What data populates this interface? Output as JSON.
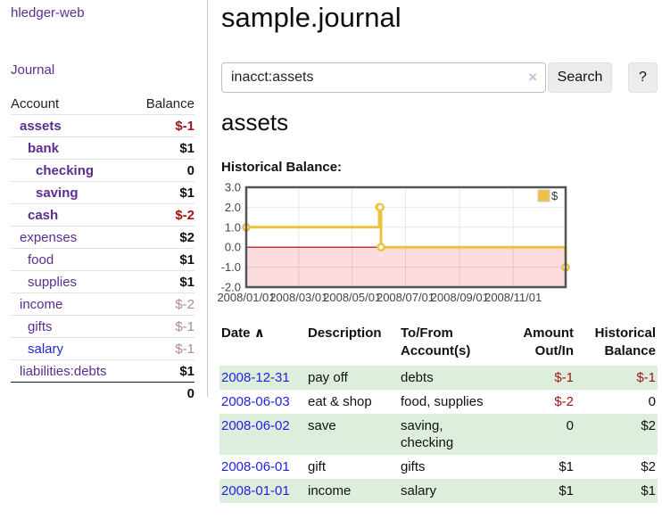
{
  "header": {
    "title": "sample.journal"
  },
  "sidebar": {
    "brand": "hledger-web",
    "journal_link": "Journal",
    "accounts_header": {
      "account": "Account",
      "balance": "Balance"
    },
    "accounts": [
      {
        "name": "assets",
        "indent": 1,
        "bold": true,
        "balance": "$-1",
        "balance_style": "neg-strong"
      },
      {
        "name": "bank",
        "indent": 2,
        "bold": true,
        "balance": "$1",
        "balance_style": "pos"
      },
      {
        "name": "checking",
        "indent": 3,
        "bold": true,
        "balance": "0",
        "balance_style": "pos"
      },
      {
        "name": "saving",
        "indent": 3,
        "bold": true,
        "balance": "$1",
        "balance_style": "pos"
      },
      {
        "name": "cash",
        "indent": 2,
        "bold": true,
        "balance": "$-2",
        "balance_style": "neg-strong"
      },
      {
        "name": "expenses",
        "indent": 1,
        "bold": false,
        "balance": "$2",
        "balance_style": "pos"
      },
      {
        "name": "food",
        "indent": 2,
        "bold": false,
        "balance": "$1",
        "balance_style": "pos"
      },
      {
        "name": "supplies",
        "indent": 2,
        "bold": false,
        "balance": "$1",
        "balance_style": "pos"
      },
      {
        "name": "income",
        "indent": 1,
        "bold": false,
        "balance": "$-2",
        "balance_style": "neg-soft"
      },
      {
        "name": "gifts",
        "indent": 2,
        "bold": false,
        "balance": "$-1",
        "balance_style": "neg-soft"
      },
      {
        "name": "salary",
        "indent": 2,
        "bold": false,
        "balance": "$-1",
        "balance_style": "neg-soft",
        "link_color": "blue"
      },
      {
        "name": "liabilities:debts",
        "indent": 1,
        "bold": false,
        "balance": "$1",
        "balance_style": "pos"
      }
    ],
    "total": "0"
  },
  "search": {
    "value": "inacct:assets",
    "clear_icon": "×",
    "button_label": "Search",
    "help_label": "?"
  },
  "account_page": {
    "heading": "assets",
    "chart_label": "Historical Balance:"
  },
  "chart_data": {
    "type": "line",
    "title": "Historical Balance:",
    "step": true,
    "series": [
      {
        "name": "$",
        "color": "#edc240",
        "points": [
          [
            "2008-01-01",
            1
          ],
          [
            "2008-06-01",
            2
          ],
          [
            "2008-06-02",
            2
          ],
          [
            "2008-06-03",
            0
          ],
          [
            "2008-12-31",
            -1
          ]
        ]
      }
    ],
    "x_range": [
      "2008-01-01",
      "2008-12-31"
    ],
    "y_range": [
      -2,
      3
    ],
    "y_ticks": [
      3.0,
      2.0,
      1.0,
      0.0,
      -1.0,
      -2.0
    ],
    "x_ticks": [
      "2008/01/01",
      "2008/03/01",
      "2008/05/01",
      "2008/07/01",
      "2008/09/01",
      "2008/11/01"
    ],
    "legend": "$",
    "legend_position": "top-right",
    "grid": true,
    "negative_fill": "#fcdcdc",
    "zero_line_color": "#a40000",
    "border_color": "#545454"
  },
  "register": {
    "columns": [
      "Date",
      "Description",
      "To/From Account(s)",
      "Amount Out/In",
      "Historical Balance"
    ],
    "sort_icon": "∧",
    "rows": [
      {
        "date": "2008-12-31",
        "description": "pay off",
        "accounts": "debts",
        "amount": "$-1",
        "amount_neg": true,
        "balance": "$-1",
        "balance_neg": true
      },
      {
        "date": "2008-06-03",
        "description": "eat & shop",
        "accounts": "food, supplies",
        "amount": "$-2",
        "amount_neg": true,
        "balance": "0",
        "balance_neg": false
      },
      {
        "date": "2008-06-02",
        "description": "save",
        "accounts": "saving, checking",
        "amount": "0",
        "amount_neg": false,
        "balance": "$2",
        "balance_neg": false
      },
      {
        "date": "2008-06-01",
        "description": "gift",
        "accounts": "gifts",
        "amount": "$1",
        "amount_neg": false,
        "balance": "$2",
        "balance_neg": false
      },
      {
        "date": "2008-01-01",
        "description": "income",
        "accounts": "salary",
        "amount": "$1",
        "amount_neg": false,
        "balance": "$1",
        "balance_neg": false
      }
    ]
  },
  "colors": {
    "accent_purple": "#5c2d91",
    "link_blue": "#2323d8",
    "date_link_blue": "#2222dd",
    "negative_strong": "#9e1414",
    "negative_soft": "#b5878b",
    "row_green": "#deeedd",
    "chart_gold": "#edc240",
    "chart_negative_bg": "#fcdcdc",
    "chart_zero_line": "#a40000"
  }
}
